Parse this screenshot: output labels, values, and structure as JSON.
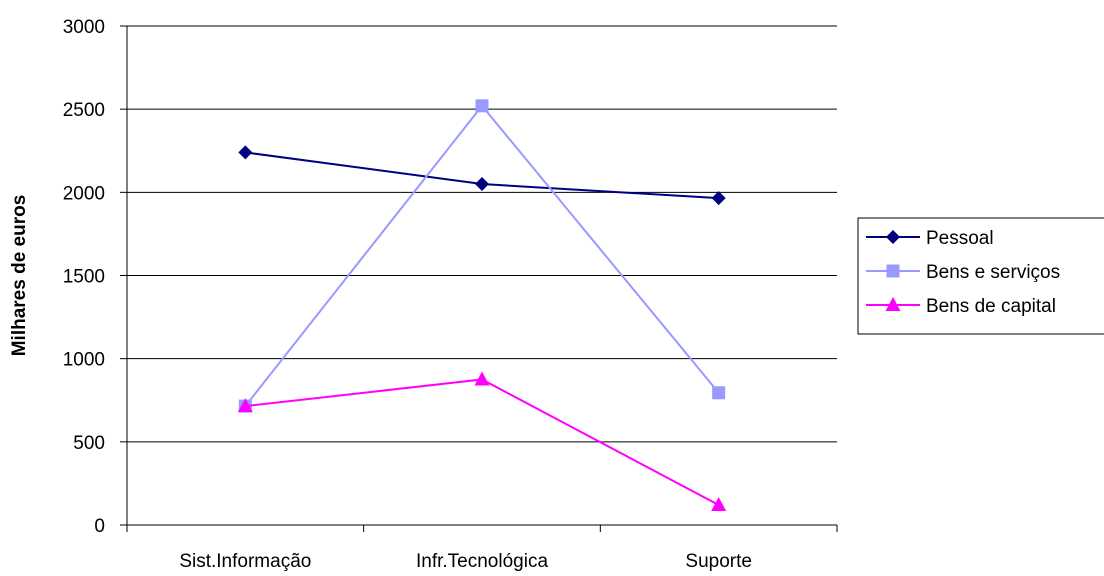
{
  "chart_data": {
    "type": "line",
    "title": "",
    "xlabel": "",
    "ylabel": "Milhares de euros",
    "categories": [
      "Sist.Informação",
      "Infr.Tecnológica",
      "Suporte"
    ],
    "ylim": [
      0,
      3000
    ],
    "yticks": [
      0,
      500,
      1000,
      1500,
      2000,
      2500,
      3000
    ],
    "grid": true,
    "legend": "right",
    "series": [
      {
        "name": "Pessoal",
        "values": [
          2240,
          2050,
          1965
        ],
        "color": "#000080",
        "marker": "diamond"
      },
      {
        "name": "Bens e serviços",
        "values": [
          715,
          2520,
          795
        ],
        "color": "#9999ff",
        "marker": "square"
      },
      {
        "name": "Bens de capital",
        "values": [
          715,
          875,
          120
        ],
        "color": "#ff00ff",
        "marker": "triangle"
      }
    ]
  }
}
